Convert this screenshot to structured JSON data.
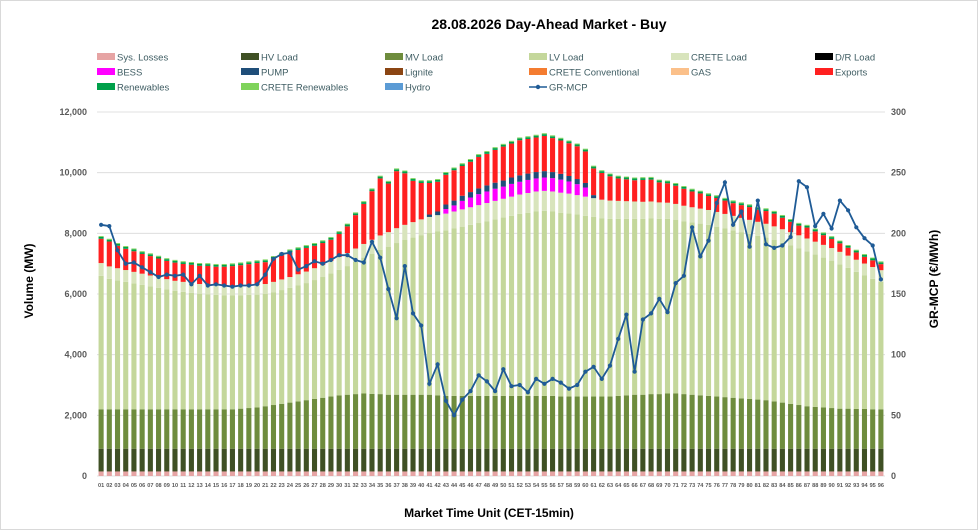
{
  "chart_data": {
    "type": "bar",
    "stacked": true,
    "title": "28.08.2026  Day-Ahead Market - Buy",
    "xlabel": "Market Time Unit (CET-15min)",
    "ylabel": "Volume (MW)",
    "ylabel_right": "GR-MCP (€/MWh)",
    "ylim": [
      0,
      12000
    ],
    "ylim_right": [
      0,
      300
    ],
    "y_ticks": [
      "0",
      "2,000",
      "4,000",
      "6,000",
      "8,000",
      "10,000",
      "12,000"
    ],
    "y_ticks_right": [
      "0",
      "50",
      "100",
      "150",
      "200",
      "250",
      "300"
    ],
    "grid": true,
    "legend_position": "top",
    "categories": [
      "01",
      "02",
      "03",
      "04",
      "05",
      "06",
      "07",
      "08",
      "09",
      "10",
      "11",
      "12",
      "13",
      "14",
      "15",
      "16",
      "17",
      "18",
      "19",
      "20",
      "21",
      "22",
      "23",
      "24",
      "25",
      "26",
      "27",
      "28",
      "29",
      "30",
      "31",
      "32",
      "33",
      "34",
      "35",
      "36",
      "37",
      "38",
      "39",
      "40",
      "41",
      "42",
      "43",
      "44",
      "45",
      "46",
      "47",
      "48",
      "49",
      "50",
      "51",
      "52",
      "53",
      "54",
      "55",
      "56",
      "57",
      "58",
      "59",
      "60",
      "61",
      "62",
      "63",
      "64",
      "65",
      "66",
      "67",
      "68",
      "69",
      "70",
      "71",
      "72",
      "73",
      "74",
      "75",
      "76",
      "77",
      "78",
      "79",
      "80",
      "81",
      "82",
      "83",
      "84",
      "85",
      "86",
      "87",
      "88",
      "89",
      "90",
      "91",
      "92",
      "93",
      "94",
      "95",
      "96"
    ],
    "legend": [
      {
        "name": "Sys. Losses",
        "color": "#e6a4a4",
        "kind": "bar"
      },
      {
        "name": "HV Load",
        "color": "#3f5024",
        "kind": "bar"
      },
      {
        "name": "MV Load",
        "color": "#6e8c3d",
        "kind": "bar"
      },
      {
        "name": "LV Load",
        "color": "#c4d79b",
        "kind": "bar"
      },
      {
        "name": "CRETE Load",
        "color": "#d8e4bc",
        "kind": "bar"
      },
      {
        "name": "D/R Load",
        "color": "#000000",
        "kind": "bar"
      },
      {
        "name": "BESS",
        "color": "#ff00ff",
        "kind": "bar"
      },
      {
        "name": "PUMP",
        "color": "#1f4e79",
        "kind": "bar"
      },
      {
        "name": "Lignite",
        "color": "#8b4513",
        "kind": "bar"
      },
      {
        "name": "CRETE Conventional",
        "color": "#f47c30",
        "kind": "bar"
      },
      {
        "name": "GAS",
        "color": "#fbc08a",
        "kind": "bar"
      },
      {
        "name": "Exports",
        "color": "#ff2020",
        "kind": "bar"
      },
      {
        "name": "Renewables",
        "color": "#00a04a",
        "kind": "bar"
      },
      {
        "name": "CRETE Renewables",
        "color": "#7fd35a",
        "kind": "bar"
      },
      {
        "name": "Hydro",
        "color": "#5b9bd5",
        "kind": "bar"
      },
      {
        "name": "GR-MCP",
        "color": "#1f5b96",
        "kind": "line"
      }
    ],
    "series": [
      {
        "name": "Sys. Losses",
        "color": "#e6a4a4",
        "values": [
          150,
          150,
          150,
          150,
          150,
          150,
          150,
          150,
          150,
          150,
          150,
          150,
          150,
          150,
          150,
          150,
          150,
          150,
          150,
          150,
          150,
          150,
          150,
          150,
          150,
          150,
          150,
          150,
          150,
          150,
          150,
          150,
          150,
          150,
          150,
          150,
          150,
          150,
          150,
          150,
          150,
          150,
          150,
          150,
          150,
          150,
          150,
          150,
          150,
          150,
          150,
          150,
          150,
          150,
          150,
          150,
          150,
          150,
          150,
          150,
          150,
          150,
          150,
          150,
          150,
          150,
          150,
          150,
          150,
          150,
          150,
          150,
          150,
          150,
          150,
          150,
          150,
          150,
          150,
          150,
          150,
          150,
          150,
          150,
          150,
          150,
          150,
          150,
          150,
          150,
          150,
          150,
          150,
          150,
          150,
          150
        ]
      },
      {
        "name": "HV Load",
        "color": "#3f5024",
        "values": [
          750,
          750,
          750,
          750,
          750,
          750,
          750,
          750,
          750,
          750,
          750,
          750,
          750,
          750,
          750,
          750,
          750,
          750,
          750,
          750,
          750,
          750,
          750,
          750,
          750,
          750,
          750,
          750,
          750,
          750,
          750,
          750,
          750,
          750,
          750,
          750,
          750,
          750,
          750,
          750,
          750,
          750,
          750,
          750,
          750,
          750,
          750,
          750,
          750,
          750,
          750,
          750,
          750,
          750,
          750,
          750,
          750,
          750,
          750,
          750,
          750,
          750,
          750,
          750,
          750,
          750,
          750,
          750,
          750,
          750,
          750,
          750,
          750,
          750,
          750,
          750,
          750,
          750,
          750,
          750,
          750,
          750,
          750,
          750,
          750,
          750,
          750,
          750,
          750,
          750,
          750,
          750,
          750,
          750,
          750,
          750
        ]
      },
      {
        "name": "MV Load",
        "color": "#6e8c3d",
        "values": [
          1300,
          1300,
          1300,
          1300,
          1300,
          1300,
          1300,
          1300,
          1300,
          1300,
          1300,
          1300,
          1300,
          1300,
          1300,
          1300,
          1300,
          1320,
          1340,
          1360,
          1400,
          1440,
          1480,
          1520,
          1560,
          1600,
          1640,
          1680,
          1720,
          1760,
          1780,
          1800,
          1820,
          1810,
          1800,
          1780,
          1780,
          1780,
          1780,
          1780,
          1780,
          1760,
          1740,
          1740,
          1740,
          1740,
          1740,
          1740,
          1740,
          1740,
          1740,
          1740,
          1740,
          1740,
          1740,
          1740,
          1720,
          1720,
          1720,
          1720,
          1720,
          1720,
          1720,
          1740,
          1760,
          1780,
          1780,
          1800,
          1800,
          1820,
          1820,
          1800,
          1780,
          1760,
          1740,
          1720,
          1700,
          1680,
          1660,
          1640,
          1620,
          1600,
          1560,
          1520,
          1480,
          1440,
          1400,
          1380,
          1360,
          1340,
          1320,
          1320,
          1310,
          1310,
          1300,
          1300
        ]
      },
      {
        "name": "LV Load",
        "color": "#c4d79b",
        "values": [
          4400,
          4300,
          4250,
          4200,
          4150,
          4100,
          4050,
          4000,
          3950,
          3900,
          3870,
          3840,
          3810,
          3790,
          3770,
          3760,
          3750,
          3740,
          3730,
          3720,
          3700,
          3720,
          3750,
          3780,
          3820,
          3860,
          3920,
          3980,
          4060,
          4140,
          4240,
          4360,
          4480,
          4620,
          4760,
          4880,
          5000,
          5100,
          5180,
          5260,
          5330,
          5400,
          5460,
          5520,
          5580,
          5640,
          5700,
          5760,
          5820,
          5880,
          5940,
          6000,
          6040,
          6080,
          6100,
          6080,
          6060,
          6040,
          6000,
          5960,
          5920,
          5880,
          5860,
          5840,
          5820,
          5800,
          5800,
          5800,
          5780,
          5760,
          5730,
          5700,
          5680,
          5660,
          5640,
          5600,
          5560,
          5520,
          5480,
          5440,
          5400,
          5360,
          5320,
          5270,
          5220,
          5160,
          5100,
          5020,
          4940,
          4860,
          4760,
          4640,
          4520,
          4400,
          4300,
          4200
        ]
      },
      {
        "name": "CRETE Load",
        "color": "#d8e4bc",
        "values": [
          420,
          410,
          400,
          390,
          380,
          370,
          360,
          350,
          340,
          335,
          330,
          325,
          320,
          315,
          310,
          310,
          310,
          310,
          315,
          320,
          330,
          340,
          350,
          360,
          370,
          380,
          390,
          400,
          410,
          420,
          430,
          440,
          450,
          460,
          470,
          480,
          490,
          500,
          510,
          520,
          530,
          540,
          550,
          560,
          570,
          580,
          590,
          600,
          610,
          620,
          630,
          640,
          650,
          660,
          660,
          660,
          660,
          650,
          640,
          630,
          620,
          610,
          600,
          590,
          580,
          570,
          560,
          550,
          540,
          530,
          520,
          510,
          500,
          495,
          490,
          485,
          480,
          475,
          470,
          465,
          460,
          455,
          450,
          445,
          440,
          435,
          430,
          425,
          420,
          415,
          410,
          405,
          400,
          395,
          390,
          385
        ]
      },
      {
        "name": "BESS",
        "color": "#ff00ff",
        "values": [
          0,
          0,
          0,
          0,
          0,
          0,
          0,
          0,
          0,
          0,
          0,
          0,
          0,
          0,
          0,
          0,
          0,
          0,
          0,
          0,
          0,
          0,
          0,
          0,
          0,
          0,
          0,
          0,
          0,
          0,
          0,
          0,
          0,
          0,
          0,
          0,
          0,
          0,
          0,
          0,
          0,
          0,
          150,
          200,
          280,
          320,
          360,
          380,
          400,
          400,
          420,
          420,
          430,
          430,
          440,
          440,
          430,
          400,
          360,
          300,
          0,
          0,
          0,
          0,
          0,
          0,
          0,
          0,
          0,
          0,
          0,
          0,
          0,
          0,
          0,
          0,
          0,
          0,
          0,
          0,
          0,
          0,
          0,
          0,
          0,
          0,
          0,
          0,
          0,
          0,
          0,
          0,
          0,
          0,
          0,
          0
        ]
      },
      {
        "name": "PUMP",
        "color": "#1f4e79",
        "values": [
          0,
          0,
          0,
          0,
          0,
          0,
          0,
          0,
          0,
          0,
          0,
          0,
          0,
          0,
          0,
          0,
          0,
          0,
          0,
          0,
          0,
          0,
          0,
          0,
          0,
          0,
          0,
          0,
          0,
          0,
          0,
          0,
          0,
          0,
          0,
          0,
          0,
          0,
          0,
          0,
          80,
          120,
          150,
          160,
          170,
          180,
          190,
          200,
          200,
          200,
          210,
          210,
          210,
          210,
          210,
          200,
          190,
          180,
          170,
          150,
          100,
          0,
          0,
          0,
          0,
          0,
          0,
          0,
          0,
          0,
          0,
          0,
          0,
          0,
          0,
          0,
          0,
          0,
          0,
          0,
          0,
          0,
          0,
          0,
          0,
          0,
          0,
          0,
          0,
          0,
          0,
          0,
          0,
          0,
          0,
          0
        ]
      },
      {
        "name": "Exports",
        "color": "#ff2020",
        "values": [
          800,
          820,
          740,
          700,
          680,
          650,
          640,
          620,
          600,
          600,
          590,
          600,
          600,
          620,
          620,
          630,
          660,
          680,
          700,
          720,
          720,
          760,
          800,
          820,
          800,
          780,
          740,
          720,
          700,
          760,
          880,
          1100,
          1320,
          1600,
          1880,
          1600,
          1880,
          1700,
          1360,
          1200,
          1040,
          980,
          980,
          1000,
          980,
          1000,
          1040,
          1040,
          1080,
          1120,
          1120,
          1160,
          1140,
          1140,
          1160,
          1120,
          1100,
          1080,
          1080,
          1040,
          880,
          880,
          800,
          740,
          720,
          700,
          720,
          720,
          660,
          640,
          600,
          560,
          520,
          500,
          460,
          460,
          440,
          420,
          420,
          420,
          400,
          420,
          420,
          380,
          340,
          320,
          360,
          340,
          320,
          300,
          280,
          260,
          240,
          220,
          220,
          200
        ]
      },
      {
        "name": "Renewables",
        "color": "#00a04a",
        "values": [
          60,
          60,
          60,
          60,
          60,
          60,
          60,
          60,
          60,
          60,
          60,
          60,
          60,
          60,
          60,
          60,
          60,
          60,
          60,
          60,
          60,
          60,
          60,
          60,
          60,
          60,
          60,
          60,
          60,
          60,
          60,
          60,
          60,
          60,
          60,
          60,
          60,
          60,
          60,
          60,
          60,
          60,
          60,
          60,
          60,
          60,
          60,
          60,
          60,
          60,
          60,
          60,
          60,
          60,
          60,
          60,
          60,
          60,
          60,
          60,
          60,
          60,
          60,
          60,
          60,
          60,
          60,
          60,
          60,
          60,
          60,
          60,
          60,
          60,
          60,
          60,
          60,
          60,
          60,
          60,
          60,
          60,
          60,
          60,
          60,
          60,
          60,
          60,
          60,
          60,
          60,
          60,
          60,
          60,
          60,
          60
        ]
      },
      {
        "name": "CRETE Renewables",
        "color": "#7fd35a",
        "values": [
          30,
          30,
          30,
          30,
          30,
          30,
          30,
          30,
          30,
          30,
          30,
          30,
          30,
          30,
          30,
          30,
          30,
          30,
          30,
          30,
          30,
          30,
          30,
          30,
          30,
          30,
          30,
          30,
          30,
          30,
          30,
          30,
          30,
          30,
          30,
          30,
          30,
          30,
          30,
          30,
          30,
          30,
          30,
          30,
          30,
          30,
          30,
          30,
          30,
          30,
          30,
          30,
          30,
          30,
          30,
          30,
          30,
          30,
          30,
          30,
          30,
          30,
          30,
          30,
          30,
          30,
          30,
          30,
          30,
          30,
          30,
          30,
          30,
          30,
          30,
          30,
          30,
          30,
          30,
          30,
          30,
          30,
          30,
          30,
          30,
          30,
          30,
          30,
          30,
          30,
          30,
          30,
          30,
          30,
          30,
          30
        ]
      }
    ],
    "line": {
      "name": "GR-MCP",
      "color": "#1f5b96",
      "axis": "right",
      "values": [
        207,
        206,
        186,
        175,
        176,
        172,
        168,
        164,
        166,
        165,
        166,
        158,
        165,
        157,
        158,
        157,
        156,
        157,
        157,
        158,
        166,
        179,
        183,
        184,
        170,
        173,
        177,
        175,
        178,
        182,
        182,
        178,
        176,
        193,
        180,
        154,
        130,
        173,
        134,
        124,
        76,
        92,
        62,
        50,
        63,
        70,
        83,
        78,
        70,
        88,
        74,
        75,
        69,
        80,
        76,
        80,
        77,
        72,
        75,
        86,
        90,
        80,
        91,
        113,
        133,
        86,
        129,
        134,
        146,
        135,
        159,
        165,
        205,
        181,
        194,
        225,
        242,
        207,
        218,
        189,
        227,
        191,
        188,
        190,
        197,
        243,
        238,
        206,
        216,
        204,
        227,
        219,
        205,
        196,
        190,
        162
      ]
    }
  }
}
